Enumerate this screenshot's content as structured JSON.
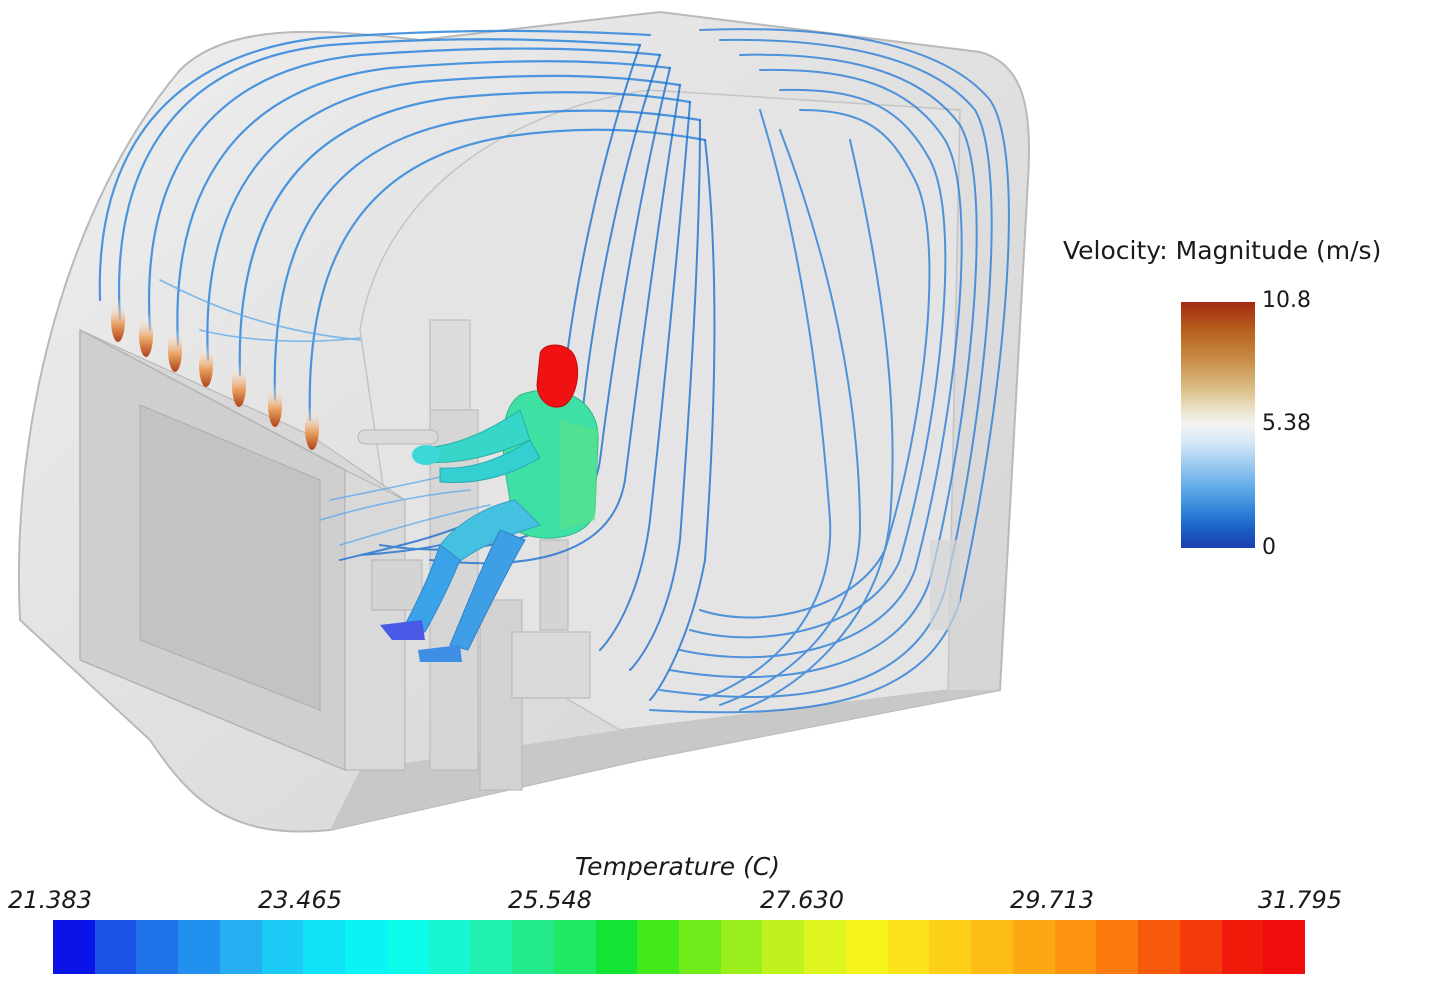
{
  "velocity_legend": {
    "title": "Velocity: Magnitude (m/s)",
    "ticks": [
      "10.8",
      "5.38",
      "0"
    ]
  },
  "temperature_legend": {
    "title": "Temperature (C)",
    "ticks": [
      "21.383",
      "23.465",
      "25.548",
      "27.630",
      "29.713",
      "31.795"
    ],
    "colors": [
      "#0a14e6",
      "#1a52e8",
      "#1e72ea",
      "#2290ee",
      "#26aef2",
      "#1ccaf6",
      "#12e2f8",
      "#0af4f8",
      "#0cfcec",
      "#18f8d0",
      "#20f0b0",
      "#22ea8a",
      "#1ee864",
      "#12e434",
      "#42ea1c",
      "#70ec1a",
      "#9aee1c",
      "#c0f21e",
      "#def41e",
      "#f4f41c",
      "#fce41a",
      "#fcd018",
      "#fcbc14",
      "#fca812",
      "#fc9410",
      "#fc7a0e",
      "#f85a0c",
      "#f43a0a",
      "#f01a0a",
      "#ee0c0c"
    ]
  }
}
